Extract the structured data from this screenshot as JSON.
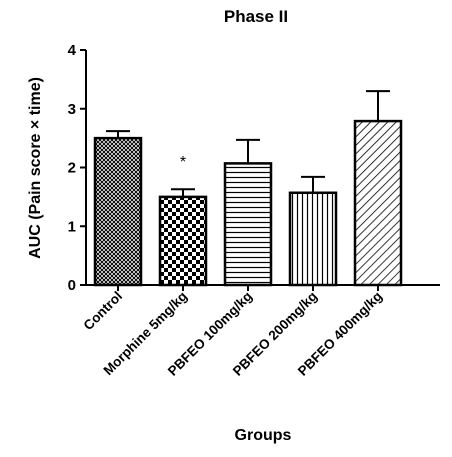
{
  "chart_data": {
    "type": "bar",
    "title": "Phase II",
    "xlabel": "Groups",
    "ylabel": "AUC (Pain score × time)",
    "ylim": [
      0,
      4
    ],
    "yticks": [
      0,
      1,
      2,
      3,
      4
    ],
    "grid": false,
    "categories": [
      "Control",
      "Morphine 5mg/kg",
      "PBFEO 100mg/kg",
      "PBFEO 200mg/kg",
      "PBFEO 400mg/kg"
    ],
    "values": [
      2.5,
      1.5,
      2.07,
      1.57,
      2.79
    ],
    "errors": [
      0.12,
      0.13,
      0.4,
      0.27,
      0.51
    ],
    "patterns": [
      "crosshatch-fine",
      "checker",
      "horizontal",
      "vertical",
      "diagonal"
    ],
    "annotations": [
      {
        "category": "Morphine 5mg/kg",
        "text": "*"
      }
    ]
  }
}
